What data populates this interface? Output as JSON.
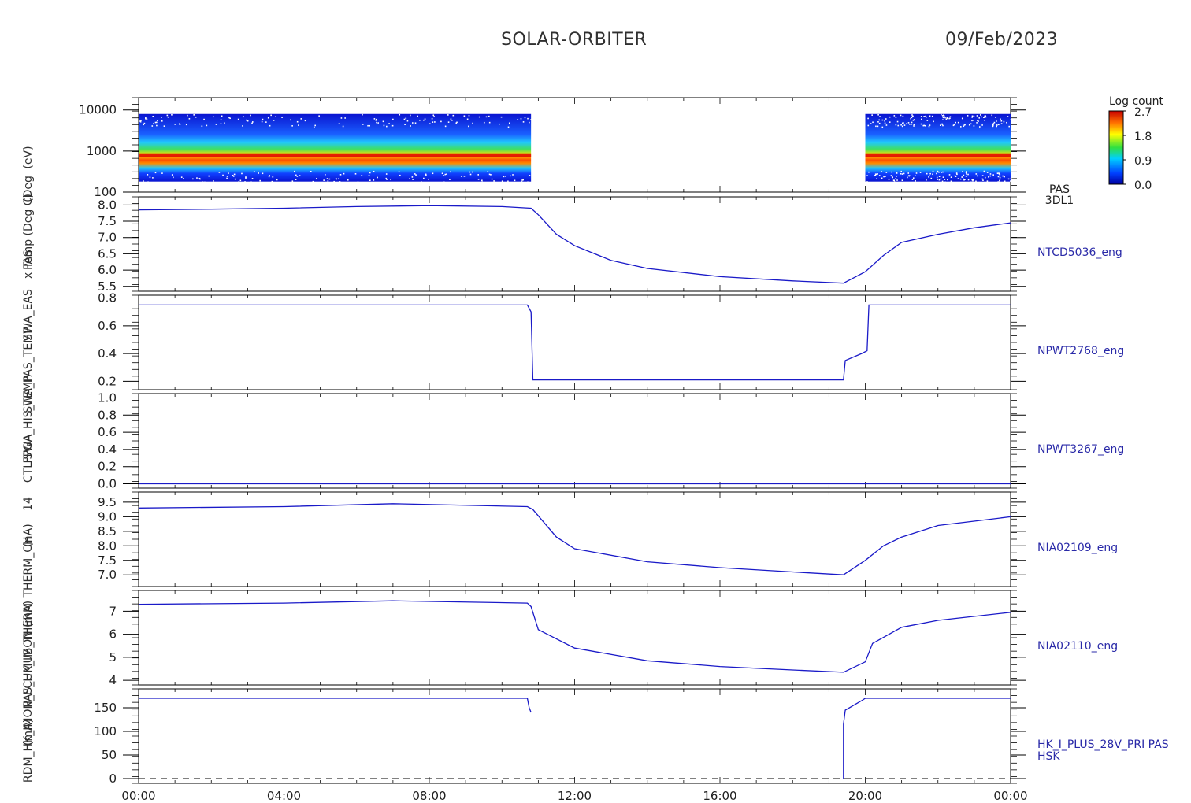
{
  "header": {
    "title": "SOLAR-ORBITER",
    "date": "09/Feb/2023"
  },
  "colors": {
    "trace": "#1a1ac8",
    "label": "#2a2aa8",
    "axis": "#000000"
  },
  "colorbar": {
    "title": "Log count",
    "ticks": [
      "2.7",
      "1.8",
      "0.9",
      "0.0"
    ],
    "range": [
      0.0,
      2.7
    ]
  },
  "left_axis_title_fragments": [
    "(eV)",
    "x Temp (Deg C)",
    "(Deg",
    "PAS",
    "SWA_EAS",
    "SWA_PAS_TEMP",
    "SWA_HIS_TEMP",
    "FPGA",
    "CTL",
    "14",
    "(nA)",
    "THERM_CH",
    "(mA)",
    "PAS_HK_IMON",
    "RDM_HK_IMON_PCUMUB_THERM",
    "(mA)"
  ],
  "chart_data": [
    {
      "type": "heatmap",
      "panel": "pas-spectrogram",
      "instrument_label": [
        "PAS",
        "3DL1"
      ],
      "y_scale": "log",
      "y_tick_labels": [
        "10000",
        "1000",
        "100"
      ],
      "ylim": [
        100,
        20000
      ],
      "colorbar": "Log count",
      "data_intervals": [
        [
          "00:00",
          "10:48"
        ],
        [
          "20:00",
          "24:00"
        ]
      ],
      "peak_energy_eV": 800,
      "grid": false
    },
    {
      "type": "line",
      "series_label": "NTCD5036_eng",
      "y_tick_labels": [
        "8.0",
        "7.5",
        "7.0",
        "6.5",
        "6.0",
        "5.5"
      ],
      "ylim": [
        5.35,
        8.25
      ],
      "x_hours": [
        0,
        2,
        4,
        6,
        8,
        10,
        10.8,
        11,
        11.5,
        12,
        13,
        14,
        16,
        18,
        19.4,
        20,
        20.5,
        21,
        22,
        23,
        24
      ],
      "y": [
        7.85,
        7.87,
        7.9,
        7.95,
        7.98,
        7.95,
        7.9,
        7.7,
        7.1,
        6.75,
        6.3,
        6.05,
        5.8,
        5.67,
        5.6,
        5.95,
        6.45,
        6.85,
        7.1,
        7.3,
        7.45
      ]
    },
    {
      "type": "line",
      "series_label": "NPWT2768_eng",
      "y_tick_labels": [
        "0.8",
        "0.6",
        "0.4",
        "0.2"
      ],
      "ylim": [
        0.14,
        0.82
      ],
      "x_hours": [
        0,
        10.7,
        10.8,
        10.85,
        15,
        19.4,
        19.45,
        19.9,
        20.05,
        20.1,
        24
      ],
      "y": [
        0.75,
        0.75,
        0.7,
        0.21,
        0.21,
        0.21,
        0.35,
        0.4,
        0.42,
        0.75,
        0.75
      ]
    },
    {
      "type": "line",
      "series_label": "NPWT3267_eng",
      "y_tick_labels": [
        "1.0",
        "0.8",
        "0.6",
        "0.4",
        "0.2",
        "0.0"
      ],
      "ylim": [
        -0.05,
        1.05
      ],
      "x_hours": [
        0,
        24
      ],
      "y": [
        0.0,
        0.0
      ]
    },
    {
      "type": "line",
      "series_label": "NIA02109_eng",
      "y_tick_labels": [
        "9.5",
        "9.0",
        "8.5",
        "8.0",
        "7.5",
        "7.0"
      ],
      "ylim": [
        6.6,
        9.85
      ],
      "x_hours": [
        0,
        4,
        7,
        10.7,
        10.85,
        11.5,
        12,
        14,
        16,
        18,
        19.4,
        20,
        20.5,
        21,
        22,
        24
      ],
      "y": [
        9.3,
        9.35,
        9.45,
        9.35,
        9.25,
        8.3,
        7.9,
        7.45,
        7.25,
        7.1,
        7.0,
        7.5,
        8.0,
        8.3,
        8.7,
        9.0
      ]
    },
    {
      "type": "line",
      "series_label": "NIA02110_eng",
      "y_tick_labels": [
        "7",
        "6",
        "5",
        "4"
      ],
      "ylim": [
        3.8,
        7.9
      ],
      "x_hours": [
        0,
        4,
        7,
        10.7,
        10.8,
        11,
        12,
        14,
        16,
        18,
        19.4,
        20,
        20.2,
        21,
        22,
        24
      ],
      "y": [
        7.3,
        7.35,
        7.45,
        7.35,
        7.2,
        6.2,
        5.4,
        4.85,
        4.6,
        4.45,
        4.35,
        4.8,
        5.6,
        6.3,
        6.6,
        6.95
      ]
    },
    {
      "type": "line",
      "series_label": [
        "HK_I_PLUS_28V_PRI PAS",
        "HSK"
      ],
      "y_tick_labels": [
        "150",
        "100",
        "50",
        "0"
      ],
      "ylim": [
        -10,
        190
      ],
      "segments": [
        {
          "x_hours": [
            0,
            10.7,
            10.75,
            10.8
          ],
          "y": [
            170,
            170,
            150,
            140
          ]
        },
        {
          "x_hours": [
            19.4,
            19.4,
            19.45,
            19.9,
            20.0,
            24
          ],
          "y": [
            0,
            115,
            145,
            165,
            170,
            170
          ]
        }
      ],
      "baseline_dashed": 0
    }
  ],
  "x_axis": {
    "tick_labels": [
      "00:00",
      "04:00",
      "08:00",
      "12:00",
      "16:00",
      "20:00",
      "00:00"
    ],
    "range_hours": [
      0,
      24
    ]
  }
}
